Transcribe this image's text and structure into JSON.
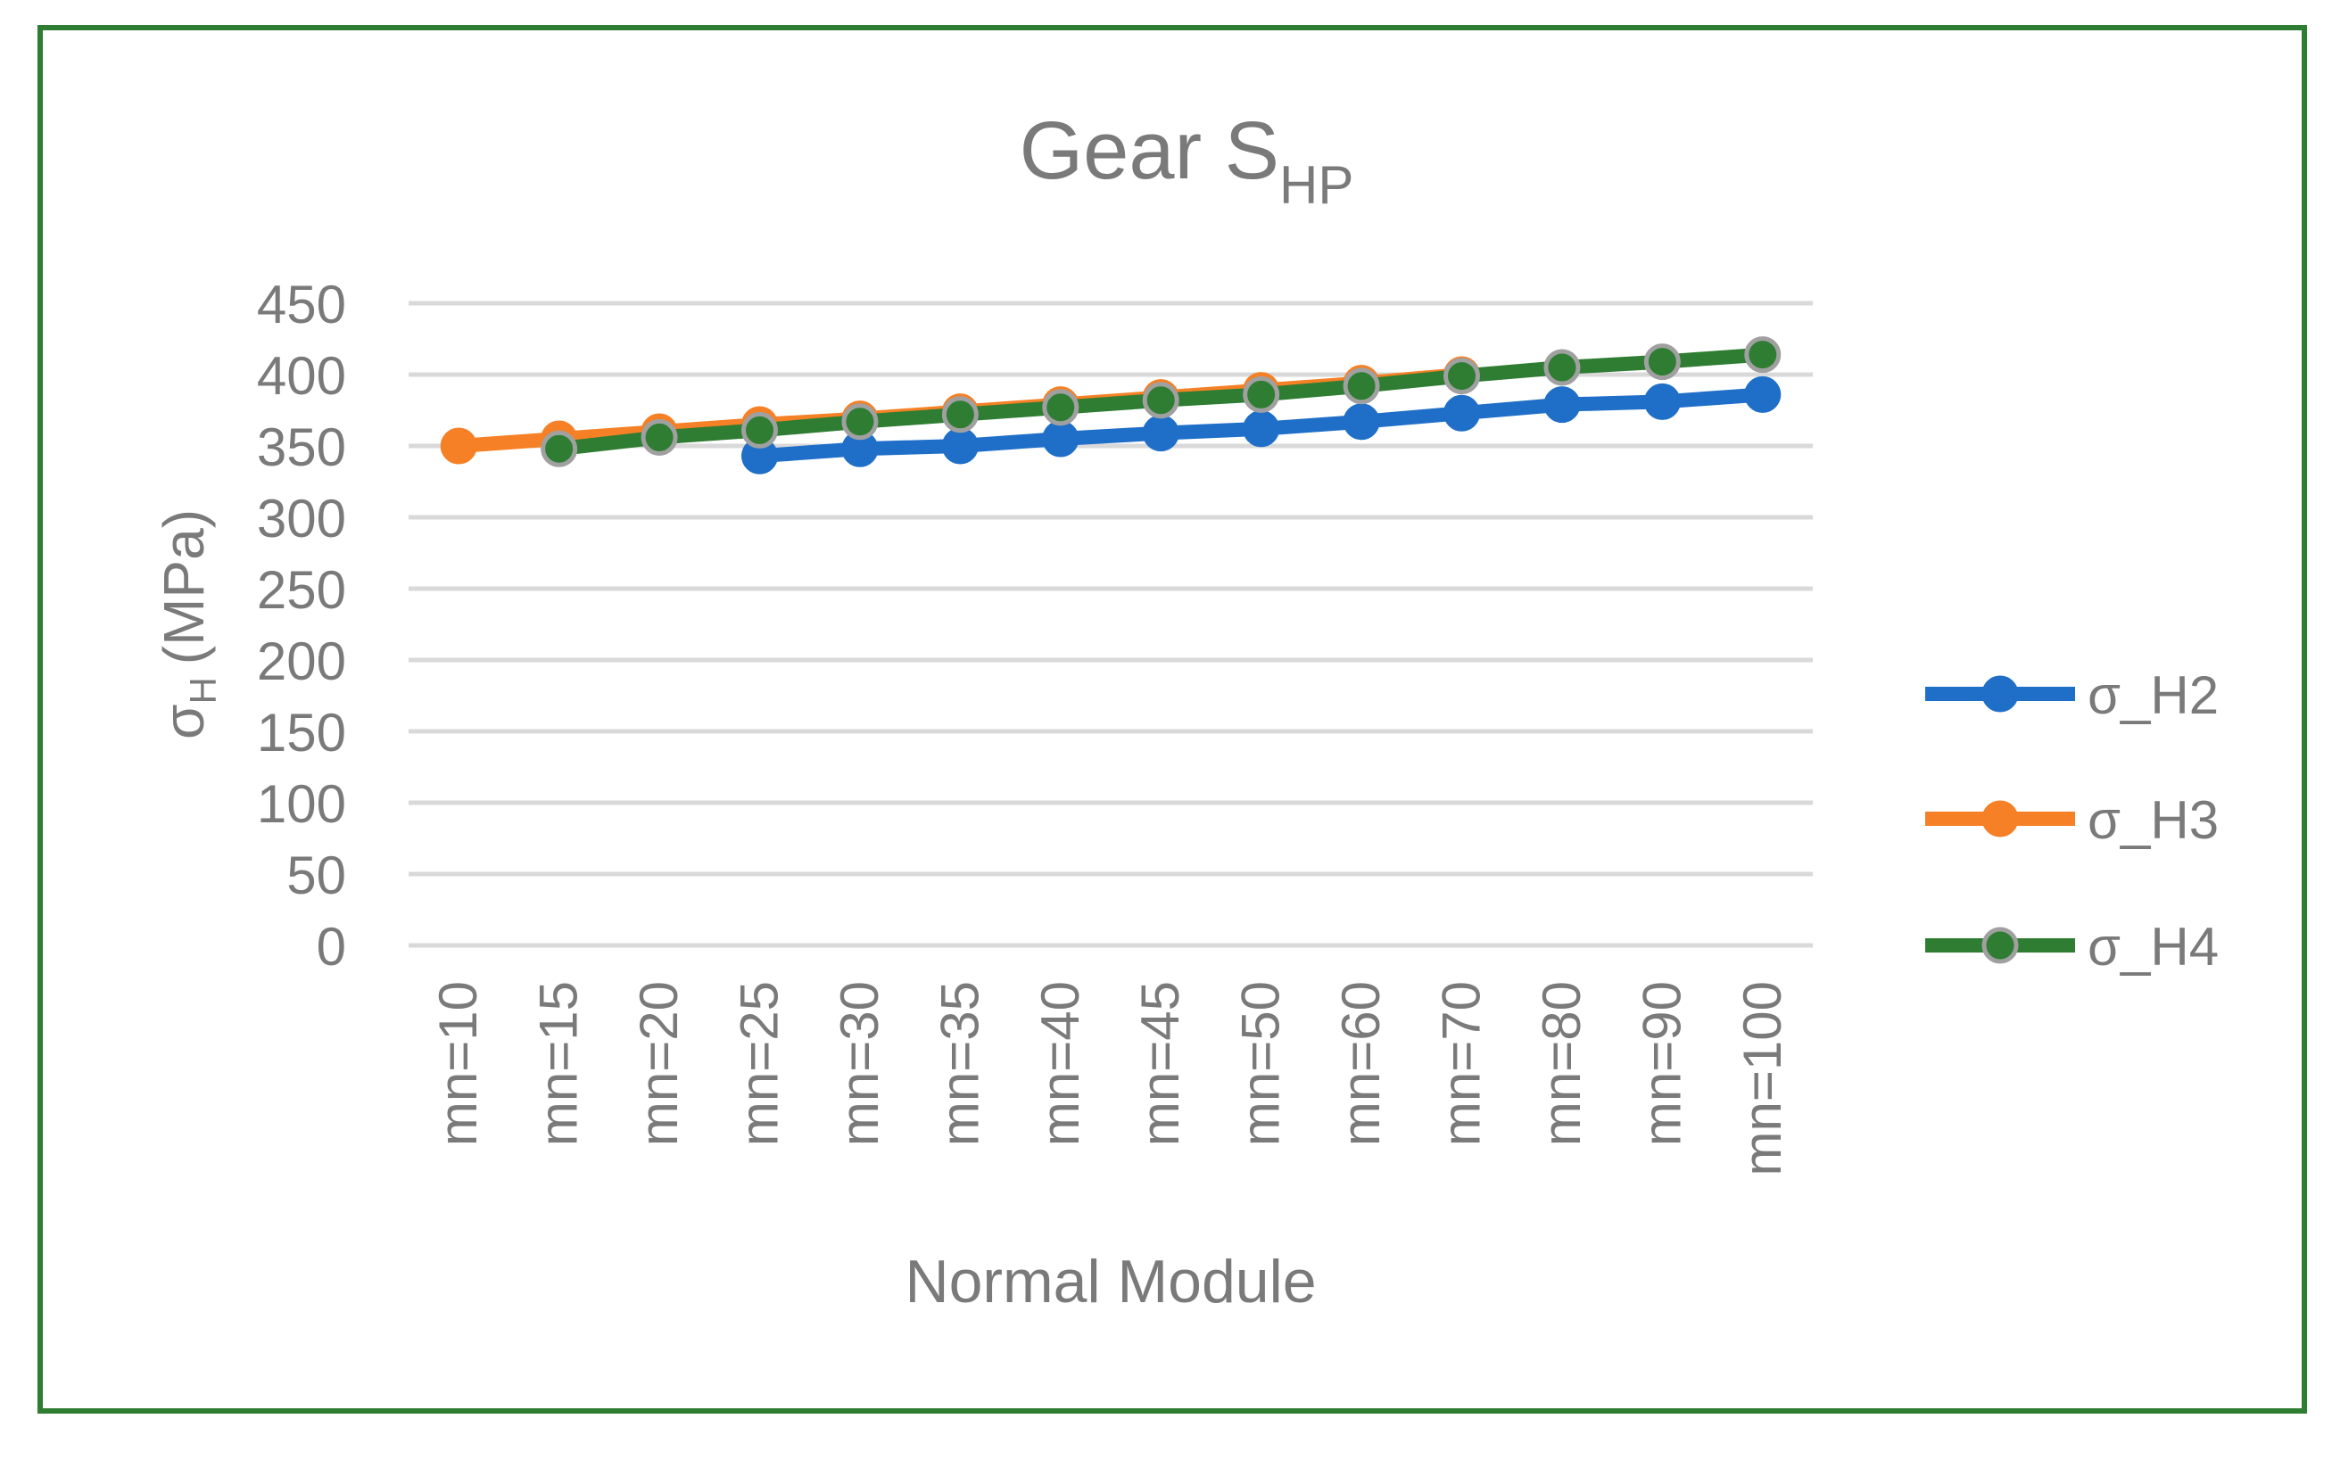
{
  "chart_data": {
    "type": "line",
    "title": {
      "main": "Gear S",
      "subscript": "HP"
    },
    "xlabel": "Normal Module",
    "ylabel": {
      "symbol": "σ",
      "subscript": "H",
      "unit": "(MPa)"
    },
    "categories": [
      "mn=10",
      "mn=15",
      "mn=20",
      "mn=25",
      "mn=30",
      "mn=35",
      "mn=40",
      "mn=45",
      "mn=50",
      "mn=60",
      "mn=70",
      "mn=80",
      "mn=90",
      "mn=100"
    ],
    "ylim": [
      0,
      450
    ],
    "yticks": [
      0,
      50,
      100,
      150,
      200,
      250,
      300,
      350,
      400,
      450
    ],
    "grid": true,
    "legend_position": "right",
    "series": [
      {
        "name": "σ_H2",
        "color": "#1f6fc8",
        "marker_edge": "#1f6fc8",
        "values": [
          null,
          null,
          null,
          343,
          348,
          350,
          355,
          359,
          362,
          367,
          373,
          379,
          381,
          386
        ]
      },
      {
        "name": "σ_H3",
        "color": "#f58025",
        "marker_edge": "#f58025",
        "values": [
          350,
          355,
          360,
          365,
          369,
          374,
          379,
          384,
          389,
          394,
          400,
          null,
          null,
          null
        ]
      },
      {
        "name": "σ_H4",
        "color": "#2e7d32",
        "marker_edge": "#a0a0a0",
        "values": [
          null,
          348,
          356,
          361,
          367,
          372,
          377,
          382,
          386,
          392,
          399,
          405,
          409,
          414
        ]
      }
    ]
  }
}
